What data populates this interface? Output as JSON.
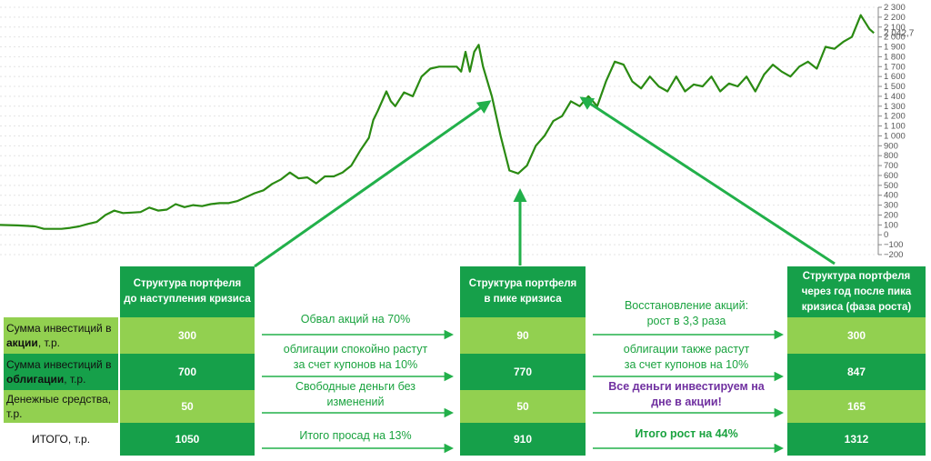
{
  "chart_data": {
    "type": "line",
    "x_range": [
      0,
      100
    ],
    "ylim": [
      -200,
      2300
    ],
    "yticks": [
      -200,
      -100,
      0,
      100,
      200,
      300,
      400,
      500,
      600,
      700,
      800,
      900,
      1000,
      1100,
      1200,
      1300,
      1400,
      1500,
      1600,
      1700,
      1800,
      1900,
      2000,
      2100,
      2200,
      2300
    ],
    "ytick_labels": [
      "−200",
      "−100",
      "0",
      "100",
      "200",
      "300",
      "400",
      "500",
      "600",
      "700",
      "800",
      "900",
      "1 000",
      "1 100",
      "1 200",
      "1 300",
      "1 400",
      "1 500",
      "1 600",
      "1 700",
      "1 800",
      "1 900",
      "2 000",
      "2 100",
      "2 200",
      "2 300"
    ],
    "last_value_label": "2 042,7",
    "grid": true,
    "series": [
      {
        "color": "#2a8a12",
        "points": [
          [
            0,
            100
          ],
          [
            2,
            95
          ],
          [
            3,
            90
          ],
          [
            4,
            85
          ],
          [
            5,
            60
          ],
          [
            7,
            60
          ],
          [
            8,
            70
          ],
          [
            9,
            85
          ],
          [
            10,
            110
          ],
          [
            11,
            130
          ],
          [
            12,
            200
          ],
          [
            13,
            245
          ],
          [
            14,
            220
          ],
          [
            15,
            225
          ],
          [
            16,
            230
          ],
          [
            17,
            275
          ],
          [
            18,
            245
          ],
          [
            19,
            255
          ],
          [
            20,
            310
          ],
          [
            21,
            280
          ],
          [
            22,
            300
          ],
          [
            23,
            290
          ],
          [
            24,
            310
          ],
          [
            25,
            320
          ],
          [
            26,
            320
          ],
          [
            27,
            340
          ],
          [
            28,
            380
          ],
          [
            29,
            420
          ],
          [
            30,
            450
          ],
          [
            31,
            515
          ],
          [
            32,
            560
          ],
          [
            33,
            630
          ],
          [
            34,
            570
          ],
          [
            35,
            580
          ],
          [
            36,
            520
          ],
          [
            37,
            590
          ],
          [
            38,
            590
          ],
          [
            39,
            630
          ],
          [
            40,
            700
          ],
          [
            41,
            850
          ],
          [
            42,
            980
          ],
          [
            42.5,
            1160
          ],
          [
            43,
            1250
          ],
          [
            44,
            1450
          ],
          [
            44.5,
            1350
          ],
          [
            45,
            1300
          ],
          [
            46,
            1440
          ],
          [
            47,
            1400
          ],
          [
            48,
            1600
          ],
          [
            49,
            1680
          ],
          [
            50,
            1700
          ],
          [
            51,
            1700
          ],
          [
            52,
            1700
          ],
          [
            52.5,
            1650
          ],
          [
            53,
            1850
          ],
          [
            53.5,
            1650
          ],
          [
            54,
            1850
          ],
          [
            54.5,
            1920
          ],
          [
            55,
            1700
          ],
          [
            56,
            1400
          ],
          [
            57,
            1000
          ],
          [
            58,
            650
          ],
          [
            59,
            620
          ],
          [
            60,
            700
          ],
          [
            61,
            900
          ],
          [
            62,
            1000
          ],
          [
            63,
            1150
          ],
          [
            64,
            1200
          ],
          [
            65,
            1350
          ],
          [
            66,
            1300
          ],
          [
            67,
            1400
          ],
          [
            68,
            1300
          ],
          [
            69,
            1550
          ],
          [
            70,
            1750
          ],
          [
            71,
            1720
          ],
          [
            72,
            1550
          ],
          [
            73,
            1480
          ],
          [
            74,
            1600
          ],
          [
            75,
            1500
          ],
          [
            76,
            1450
          ],
          [
            77,
            1600
          ],
          [
            78,
            1450
          ],
          [
            79,
            1520
          ],
          [
            80,
            1500
          ],
          [
            81,
            1600
          ],
          [
            82,
            1450
          ],
          [
            83,
            1530
          ],
          [
            84,
            1500
          ],
          [
            85,
            1600
          ],
          [
            86,
            1450
          ],
          [
            87,
            1620
          ],
          [
            88,
            1720
          ],
          [
            89,
            1650
          ],
          [
            90,
            1600
          ],
          [
            91,
            1700
          ],
          [
            92,
            1750
          ],
          [
            93,
            1680
          ],
          [
            94,
            1900
          ],
          [
            95,
            1880
          ],
          [
            96,
            1950
          ],
          [
            97,
            2000
          ],
          [
            98,
            2220
          ],
          [
            99,
            2080
          ],
          [
            99.5,
            2040
          ]
        ]
      }
    ]
  },
  "table": {
    "headers": [
      "Структура портфеля\nдо наступления кризиса",
      "Структура портфеля\nв пике кризиса",
      "Структура портфеля\nчерез год после пика\nкризиса (фаза роста)"
    ],
    "rows": [
      {
        "label_pre": "Сумма инвестиций в ",
        "label_bold": "акции",
        "label_post": ", т.р.",
        "values": [
          "300",
          "90",
          "300"
        ]
      },
      {
        "label_pre": "Сумма инвестиций в ",
        "label_bold": "облигации",
        "label_post": ", т.р.",
        "values": [
          "700",
          "770",
          "847"
        ]
      },
      {
        "label_pre": "Денежные средства, т.р.",
        "label_bold": "",
        "label_post": "",
        "values": [
          "50",
          "50",
          "165"
        ]
      },
      {
        "label_pre": "ИТОГО, т.р.",
        "label_bold": "",
        "label_post": "",
        "values": [
          "1050",
          "910",
          "1312"
        ]
      }
    ],
    "notes_crisis": [
      "Обвал акций на 70%",
      "облигации спокойно растут\nза счет купонов на 10%",
      "Свободные деньги без\nизменений",
      "Итого просад на 13%"
    ],
    "notes_growth": [
      "Восстановление акций:\nрост в 3,3 раза",
      "облигации также растут\nза счет купонов на 10%",
      "Все деньги инвестируем на\nдне в акции!",
      "Итого рост на 44%"
    ]
  },
  "colors": {
    "dark_green": "#16a04a",
    "light_green": "#92d050",
    "arrow_green": "#22b04a",
    "line_green": "#2a8a12",
    "purple": "#7030a0"
  }
}
